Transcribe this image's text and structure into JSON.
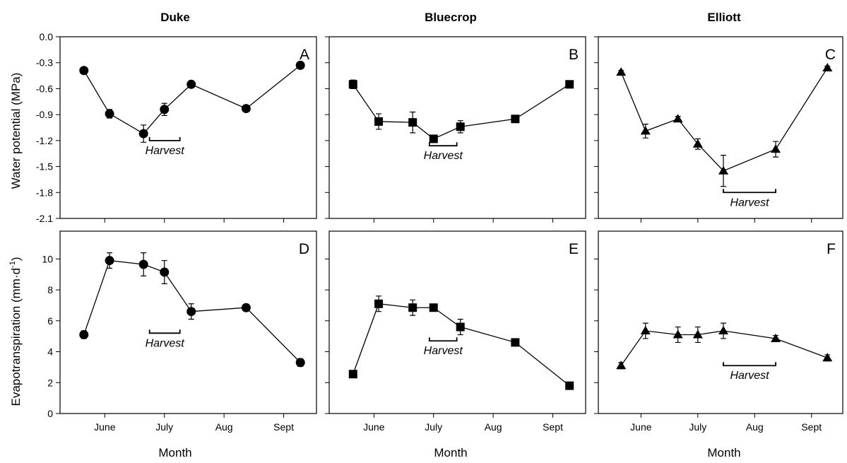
{
  "columns": [
    "Duke",
    "Bluecrop",
    "Elliott"
  ],
  "panel_letters": [
    "A",
    "B",
    "C",
    "D",
    "E",
    "F"
  ],
  "harvest_label": "Harvest",
  "x_axis": {
    "label": "Month",
    "ticks": [
      {
        "label": "June",
        "value": 1
      },
      {
        "label": "July",
        "value": 2
      },
      {
        "label": "Aug",
        "value": 3
      },
      {
        "label": "Sept",
        "value": 4
      }
    ],
    "range": [
      0.25,
      4.55
    ]
  },
  "rows": [
    {
      "ylabel": "Water potential (MPa)",
      "ylim": [
        -2.1,
        0.0
      ],
      "ticks": [
        {
          "label": "0.0",
          "value": 0.0
        },
        {
          "label": "-0.3",
          "value": -0.3
        },
        {
          "label": "-0.6",
          "value": -0.6
        },
        {
          "label": "-0.9",
          "value": -0.9
        },
        {
          "label": "-1.2",
          "value": -1.2
        },
        {
          "label": "-1.5",
          "value": -1.5
        },
        {
          "label": "-1.8",
          "value": -1.8
        },
        {
          "label": "-2.1",
          "value": -2.1
        }
      ]
    },
    {
      "ylabel": "Evapotranspiration (mm·d",
      "ylabel_sup": "-1",
      "ylabel_end": ")",
      "ylim": [
        0,
        11.8
      ],
      "ticks": [
        {
          "label": "0",
          "value": 0
        },
        {
          "label": "2",
          "value": 2
        },
        {
          "label": "4",
          "value": 4
        },
        {
          "label": "6",
          "value": 6
        },
        {
          "label": "8",
          "value": 8
        },
        {
          "label": "10",
          "value": 10
        }
      ]
    }
  ],
  "chart_data": [
    {
      "type": "line",
      "panel": "A",
      "title": "Duke",
      "series_name": "Duke",
      "marker": "circle",
      "xlabel": "Month",
      "ylabel": "Water potential (MPa)",
      "ylim": [
        -2.1,
        0.0
      ],
      "x": [
        0.65,
        1.08,
        1.65,
        2.0,
        2.45,
        3.37,
        4.28
      ],
      "y": [
        -0.39,
        -0.89,
        -1.12,
        -0.84,
        -0.55,
        -0.83,
        -0.33
      ],
      "err": [
        0.02,
        0.05,
        0.1,
        0.07,
        0.04,
        0.02,
        0.02
      ],
      "harvest": {
        "x_start": 1.75,
        "x_end": 2.26,
        "y": -1.2,
        "label": "Harvest"
      }
    },
    {
      "type": "line",
      "panel": "B",
      "title": "Bluecrop",
      "series_name": "Bluecrop",
      "marker": "square",
      "xlabel": "Month",
      "ylabel": "Water potential (MPa)",
      "ylim": [
        -2.1,
        0.0
      ],
      "x": [
        0.65,
        1.08,
        1.65,
        2.0,
        2.45,
        3.37,
        4.28
      ],
      "y": [
        -0.55,
        -0.98,
        -0.99,
        -1.18,
        -1.04,
        -0.95,
        -0.55
      ],
      "err": [
        0.05,
        0.09,
        0.12,
        0.03,
        0.07,
        0.02,
        0.02
      ],
      "harvest": {
        "x_start": 1.93,
        "x_end": 2.39,
        "y": -1.26,
        "label": "Harvest"
      }
    },
    {
      "type": "line",
      "panel": "C",
      "title": "Elliott",
      "series_name": "Elliott",
      "marker": "triangle",
      "xlabel": "Month",
      "ylabel": "Water potential (MPa)",
      "ylim": [
        -2.1,
        0.0
      ],
      "x": [
        0.65,
        1.08,
        1.65,
        2.0,
        2.45,
        3.37,
        4.28
      ],
      "y": [
        -0.41,
        -1.09,
        -0.95,
        -1.24,
        -1.55,
        -1.3,
        -0.36
      ],
      "err": [
        0.02,
        0.08,
        0.03,
        0.06,
        0.18,
        0.09,
        0.02
      ],
      "harvest": {
        "x_start": 2.45,
        "x_end": 3.37,
        "y": -1.8,
        "label": "Harvest"
      }
    },
    {
      "type": "line",
      "panel": "D",
      "title": "Duke",
      "series_name": "Duke",
      "marker": "circle",
      "xlabel": "Month",
      "ylabel": "Evapotranspiration (mm·d-1)",
      "ylim": [
        0,
        11.8
      ],
      "x": [
        0.65,
        1.08,
        1.65,
        2.0,
        2.45,
        3.37,
        4.28
      ],
      "y": [
        5.1,
        9.9,
        9.65,
        9.15,
        6.6,
        6.85,
        3.3
      ],
      "err": [
        0.25,
        0.5,
        0.75,
        0.75,
        0.5,
        0.2,
        0.25
      ],
      "harvest": {
        "x_start": 1.75,
        "x_end": 2.26,
        "y": 5.2,
        "label": "Harvest"
      }
    },
    {
      "type": "line",
      "panel": "E",
      "title": "Bluecrop",
      "series_name": "Bluecrop",
      "marker": "square",
      "xlabel": "Month",
      "ylabel": "Evapotranspiration (mm·d-1)",
      "ylim": [
        0,
        11.8
      ],
      "x": [
        0.65,
        1.08,
        1.65,
        2.0,
        2.45,
        3.37,
        4.28
      ],
      "y": [
        2.55,
        7.1,
        6.85,
        6.85,
        5.6,
        4.6,
        1.8
      ],
      "err": [
        0.15,
        0.5,
        0.5,
        0.2,
        0.5,
        0.15,
        0.15
      ],
      "harvest": {
        "x_start": 1.93,
        "x_end": 2.39,
        "y": 4.7,
        "label": "Harvest"
      }
    },
    {
      "type": "line",
      "panel": "F",
      "title": "Elliott",
      "series_name": "Elliott",
      "marker": "triangle",
      "xlabel": "Month",
      "ylabel": "Evapotranspiration (mm·d-1)",
      "ylim": [
        0,
        11.8
      ],
      "x": [
        0.65,
        1.08,
        1.65,
        2.0,
        2.45,
        3.37,
        4.28
      ],
      "y": [
        3.1,
        5.35,
        5.1,
        5.1,
        5.35,
        4.85,
        3.6
      ],
      "err": [
        0.2,
        0.5,
        0.5,
        0.5,
        0.5,
        0.2,
        0.2
      ],
      "harvest": {
        "x_start": 2.45,
        "x_end": 3.37,
        "y": 3.1,
        "label": "Harvest"
      }
    }
  ]
}
